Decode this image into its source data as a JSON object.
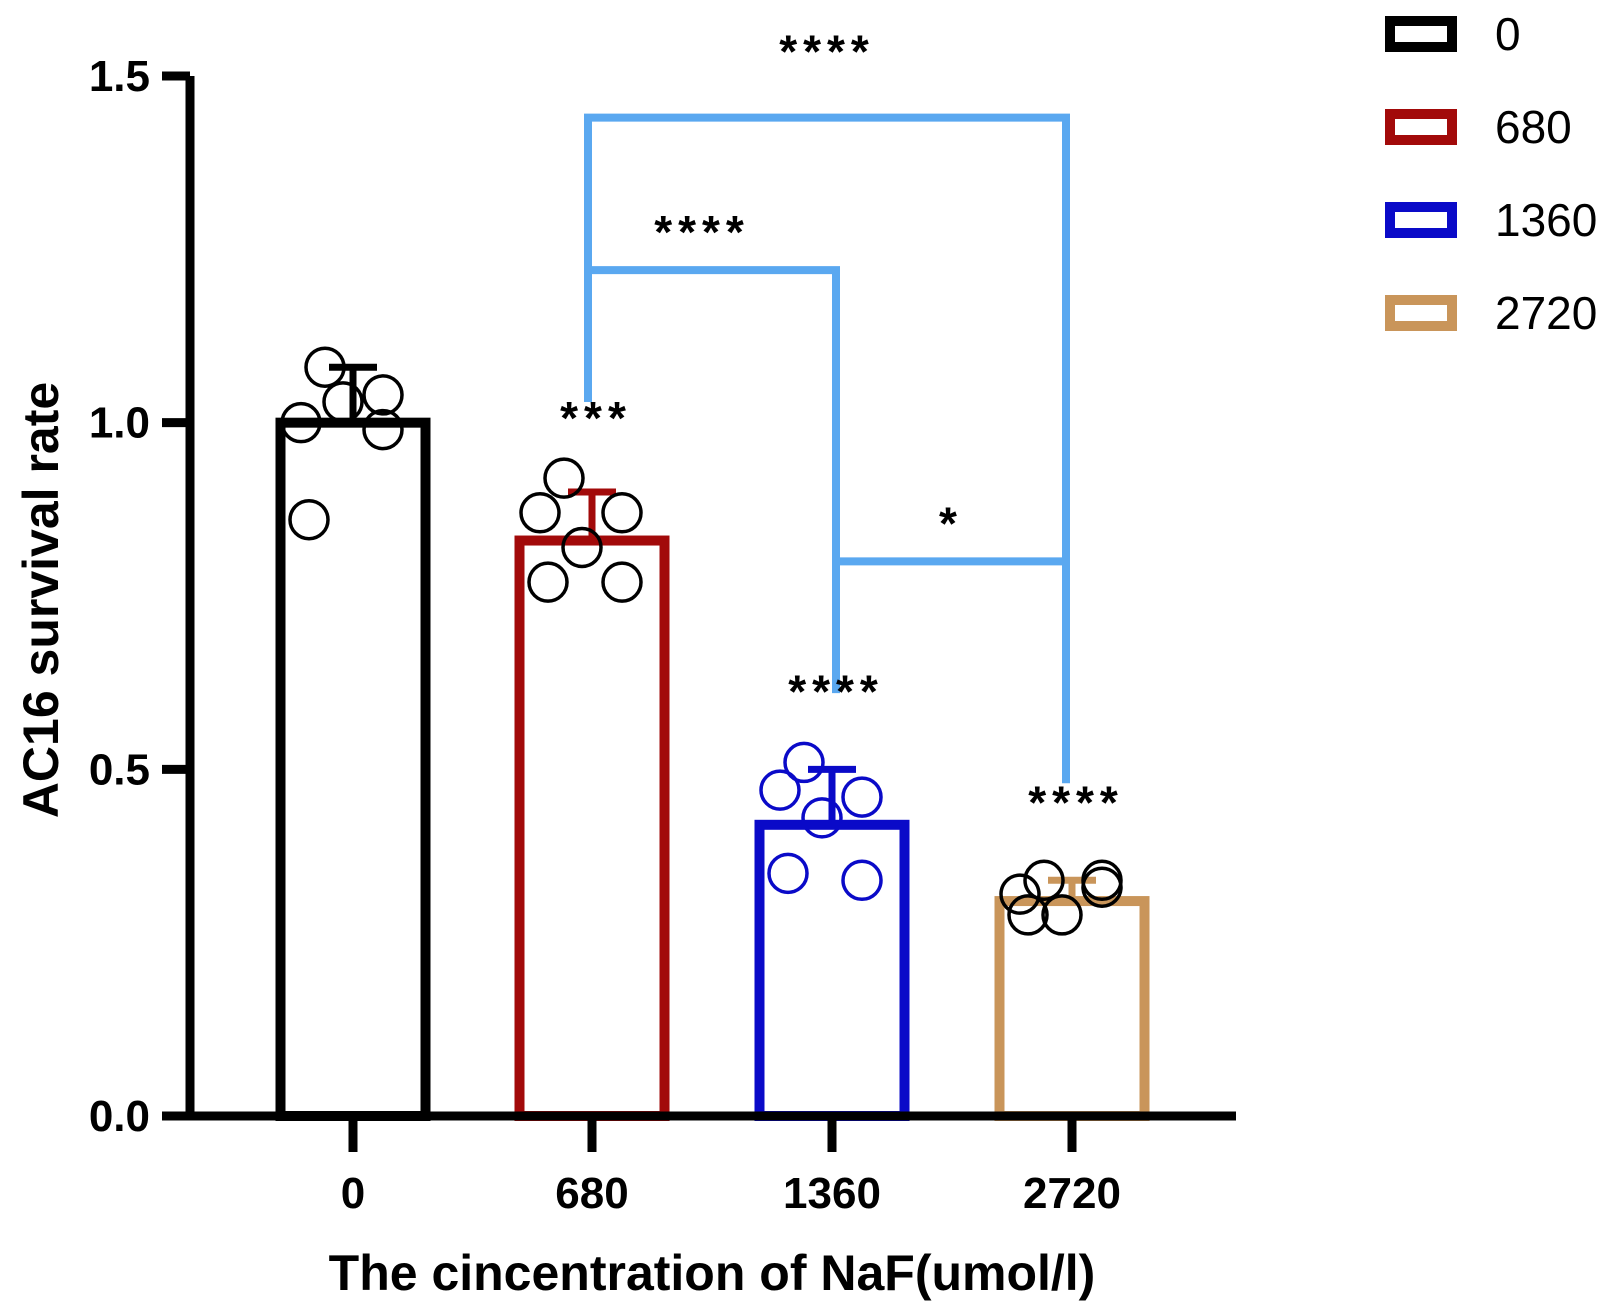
{
  "chart_data": {
    "type": "bar",
    "title": "",
    "xlabel": "The cincentration of NaF(umol/l)",
    "ylabel": "AC16 survival rate",
    "ylim": [
      0,
      1.5
    ],
    "yticks": [
      0.0,
      0.5,
      1.0,
      1.5
    ],
    "ytick_labels": [
      "0.0",
      "0.5",
      "1.0",
      "1.5"
    ],
    "categories": [
      "0",
      "680",
      "1360",
      "2720"
    ],
    "values": [
      1.0,
      0.83,
      0.42,
      0.31
    ],
    "errors": [
      0.08,
      0.07,
      0.08,
      0.03
    ],
    "colors": [
      "#000000",
      "#a20a0a",
      "#0a0ac8",
      "#c9955a"
    ],
    "points": [
      [
        1.08,
        1.0,
        1.03,
        1.04,
        0.99,
        0.86
      ],
      [
        0.92,
        0.87,
        0.82,
        0.87,
        0.77,
        0.77
      ],
      [
        0.51,
        0.47,
        0.43,
        0.46,
        0.34,
        0.35
      ],
      [
        0.34,
        0.32,
        0.29,
        0.33,
        0.34,
        0.29
      ]
    ],
    "point_colors": [
      "#000000",
      "#000000",
      "#0a0ac8",
      "#000000"
    ],
    "legend": {
      "position": "top-right",
      "entries": [
        {
          "label": "0",
          "color": "#000000"
        },
        {
          "label": "680",
          "color": "#a20a0a"
        },
        {
          "label": "1360",
          "color": "#0a0ac8"
        },
        {
          "label": "2720",
          "color": "#c9955a"
        }
      ]
    },
    "bar_annotations": [
      "",
      "***",
      "****",
      "****"
    ],
    "comparisons": [
      {
        "from": 1,
        "to": 3,
        "level": 1.44,
        "label": "****"
      },
      {
        "from": 1,
        "to": 2,
        "level": 1.22,
        "label": "****"
      },
      {
        "from": 2,
        "to": 3,
        "level": 0.8,
        "label": "*"
      }
    ],
    "bracket_color": "#5aa8f0"
  }
}
